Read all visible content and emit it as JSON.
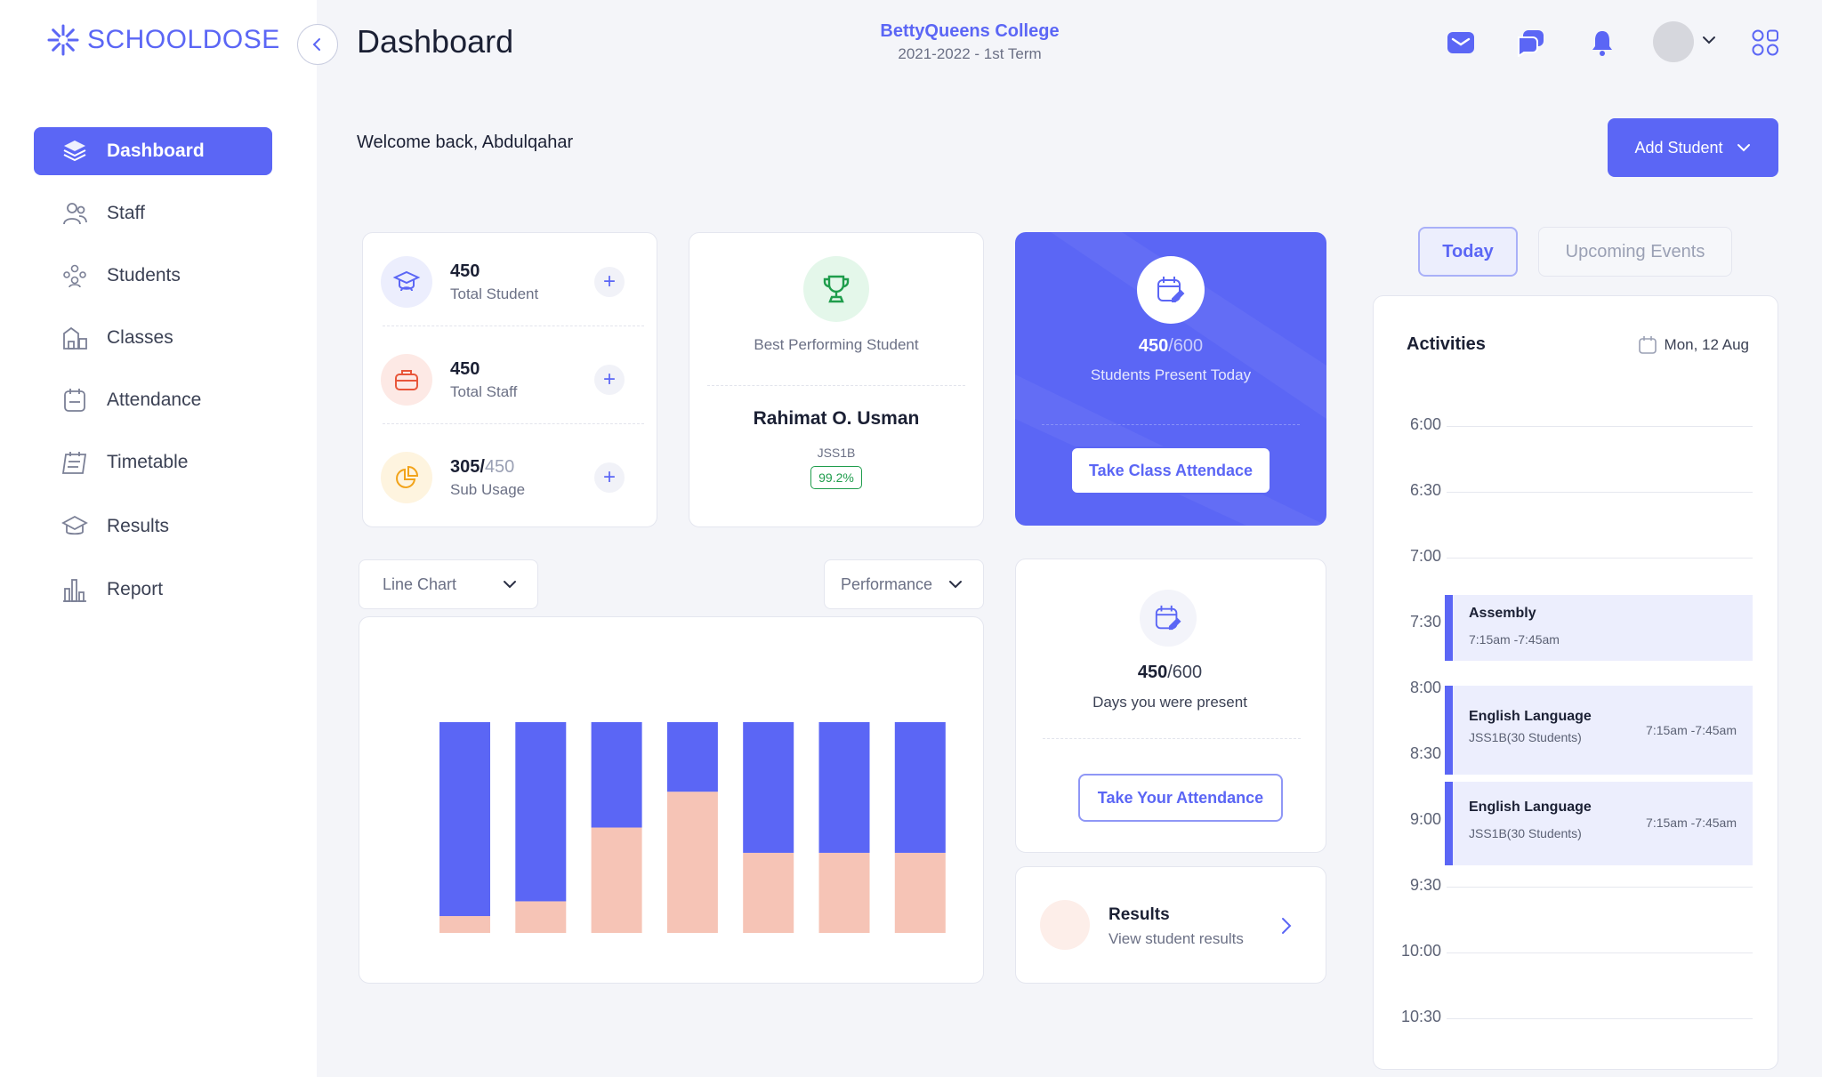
{
  "brand": {
    "name": "SCHOOLDOSE",
    "color": "#5b66f5"
  },
  "sidebar": {
    "items": [
      {
        "label": "Dashboard",
        "icon": "layers-icon",
        "active": true
      },
      {
        "label": "Staff",
        "icon": "staff-icon"
      },
      {
        "label": "Students",
        "icon": "students-icon"
      },
      {
        "label": "Classes",
        "icon": "classes-icon"
      },
      {
        "label": "Attendance",
        "icon": "attendance-icon"
      },
      {
        "label": "Timetable",
        "icon": "timetable-icon"
      },
      {
        "label": "Results",
        "icon": "results-icon"
      },
      {
        "label": "Report",
        "icon": "report-icon"
      }
    ]
  },
  "header": {
    "title": "Dashboard",
    "school_name": "BettyQueens College",
    "term": "2021-2022 - 1st Term",
    "icons": [
      "mail-icon",
      "chat-icon",
      "bell-icon",
      "avatar",
      "apps-grid-icon"
    ]
  },
  "welcome": "Welcome back, Abdulqahar",
  "add_student_label": "Add Student",
  "stats": [
    {
      "value": "450",
      "label": "Total Student",
      "icon": "graduate-icon"
    },
    {
      "value": "450",
      "label": "Total Staff",
      "icon": "briefcase-icon"
    },
    {
      "value": "305/",
      "value_dim": "450",
      "label": "Sub Usage",
      "icon": "pie-icon"
    }
  ],
  "best_student": {
    "heading": "Best Performing Student",
    "name": "Rahimat O. Usman",
    "class": "JSS1B",
    "score": "99.2%"
  },
  "attendance_today": {
    "present": "450",
    "total": "/600",
    "label": "Students Present Today",
    "button": "Take Class Attendace"
  },
  "my_attendance": {
    "present": "450",
    "total": "/600",
    "label": "Days you were present",
    "button": "Take Your Attendance"
  },
  "results_card": {
    "title": "Results",
    "subtitle": "View student results"
  },
  "chart_controls": {
    "chart_type": "Line Chart",
    "metric": "Performance"
  },
  "chart_data": {
    "type": "bar",
    "stacked": true,
    "note_axes": "no axes or tick labels shown",
    "categories": [
      "",
      "",
      "",
      "",
      "",
      "",
      ""
    ],
    "series": [
      {
        "values": [
          8,
          15,
          50,
          67,
          38,
          38,
          38
        ],
        "color": "#f6c4b6"
      },
      {
        "values": [
          92,
          85,
          50,
          33,
          62,
          62,
          62
        ],
        "color": "#5b66f5"
      }
    ],
    "ylim": [
      0,
      100
    ]
  },
  "timetable": {
    "tabs": [
      {
        "label": "Today",
        "active": true
      },
      {
        "label": "Upcoming Events",
        "active": false
      }
    ],
    "heading": "Activities",
    "date": "Mon, 12 Aug",
    "times": [
      "6:00",
      "6:30",
      "7:00",
      "7:30",
      "8:00",
      "8:30",
      "9:00",
      "9:30",
      "10:00",
      "10:30"
    ],
    "events": [
      {
        "title": "Assembly",
        "time": "7:15am -7:45am"
      },
      {
        "title": "English Language",
        "sub": "JSS1B(30 Students)",
        "time": "7:15am -7:45am"
      },
      {
        "title": "English Language",
        "sub": "JSS1B(30 Students)",
        "time": "7:15am -7:45am"
      }
    ]
  }
}
